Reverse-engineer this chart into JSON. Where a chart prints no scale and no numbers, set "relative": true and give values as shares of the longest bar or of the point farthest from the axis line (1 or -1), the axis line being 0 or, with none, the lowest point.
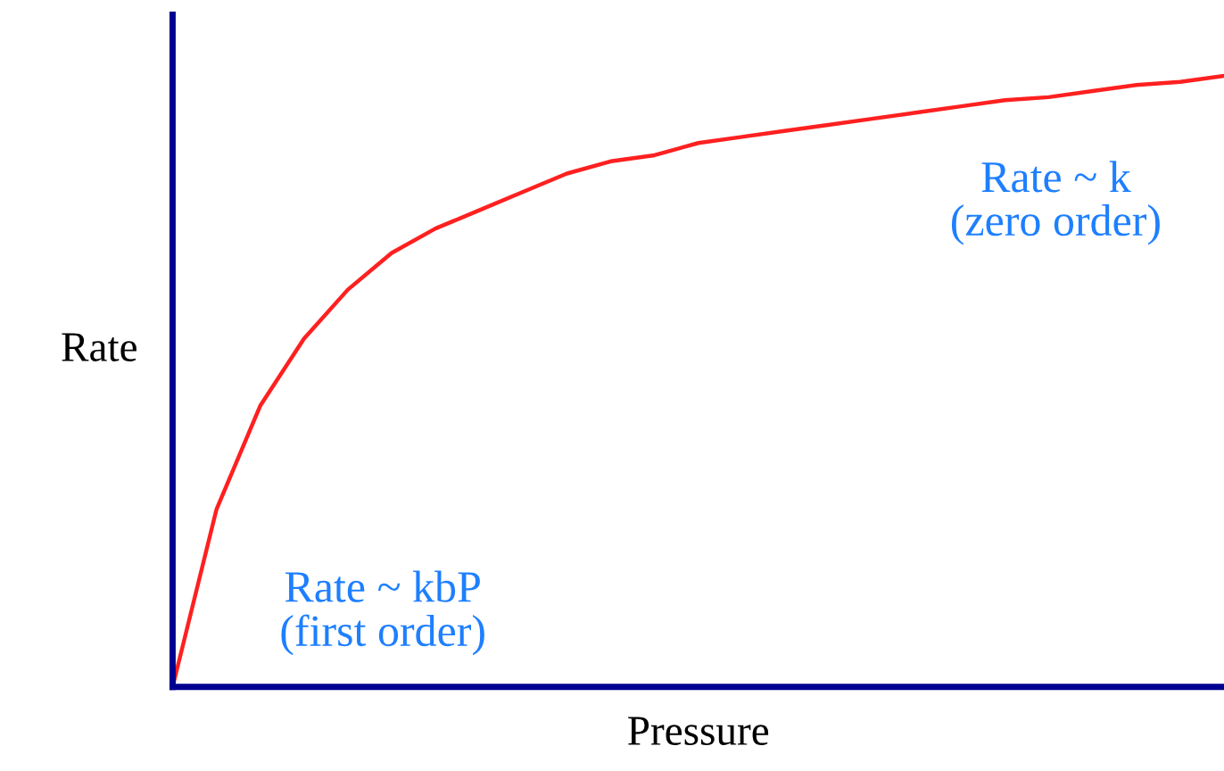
{
  "chart_data": {
    "type": "line",
    "relative": true,
    "xlabel": "Pressure",
    "ylabel": "Rate",
    "categories": [
      null,
      null,
      null,
      null,
      null,
      null,
      null,
      null,
      null,
      null,
      null,
      null,
      null,
      null,
      null,
      null,
      null,
      null,
      null,
      null,
      null,
      null,
      null,
      null,
      null
    ],
    "series": [
      {
        "color": "#ff2020",
        "values": [
          0,
          0.29,
          0.46,
          0.57,
          0.65,
          0.71,
          0.75,
          0.78,
          0.81,
          0.84,
          0.86,
          0.87,
          0.89,
          0.9,
          0.91,
          0.92,
          0.93,
          0.94,
          0.95,
          0.96,
          0.965,
          0.975,
          0.985,
          0.99,
          1.0
        ]
      }
    ],
    "annotations": [
      "Rate ~ kbP\n(first order)",
      "Rate ~ k\n(zero order)"
    ],
    "grid": false,
    "legend": false,
    "marker": "none",
    "line_style": "solid"
  }
}
